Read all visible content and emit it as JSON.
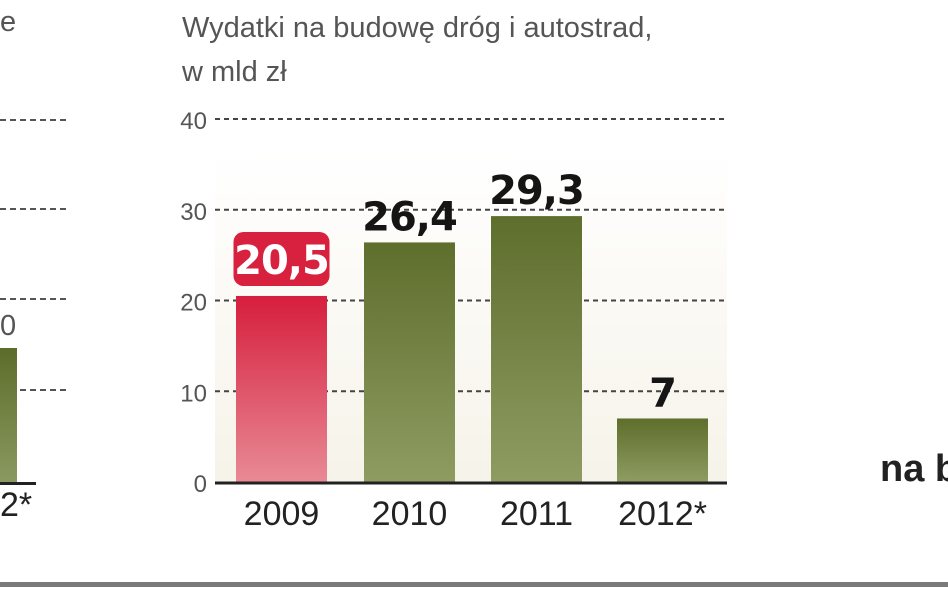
{
  "left_fragment": {
    "title_tail": "e",
    "value_tail": "0",
    "xlabel_tail": "2*"
  },
  "right_fragment": {
    "text": "na b"
  },
  "chart_data": {
    "type": "bar",
    "title": "Wydatki na budowę dróg i autostrad,",
    "subtitle": "w mld zł",
    "categories": [
      "2009",
      "2010",
      "2011",
      "2012*"
    ],
    "values": [
      20.5,
      26.4,
      29.3,
      7
    ],
    "value_labels": [
      "20,5",
      "26,4",
      "29,3",
      "7"
    ],
    "highlight_index": 0,
    "ylim": [
      0,
      40
    ],
    "yticks": [
      0,
      10,
      20,
      30,
      40
    ],
    "grid": true,
    "colors": {
      "bar": "#6b7a35",
      "bar_light": "#9aa86d",
      "highlight": "#d8203f",
      "highlight_light": "#ee8e9a",
      "label_highlight_bg": "#d8203f",
      "axis": "#222222",
      "grid": "#444444"
    }
  }
}
